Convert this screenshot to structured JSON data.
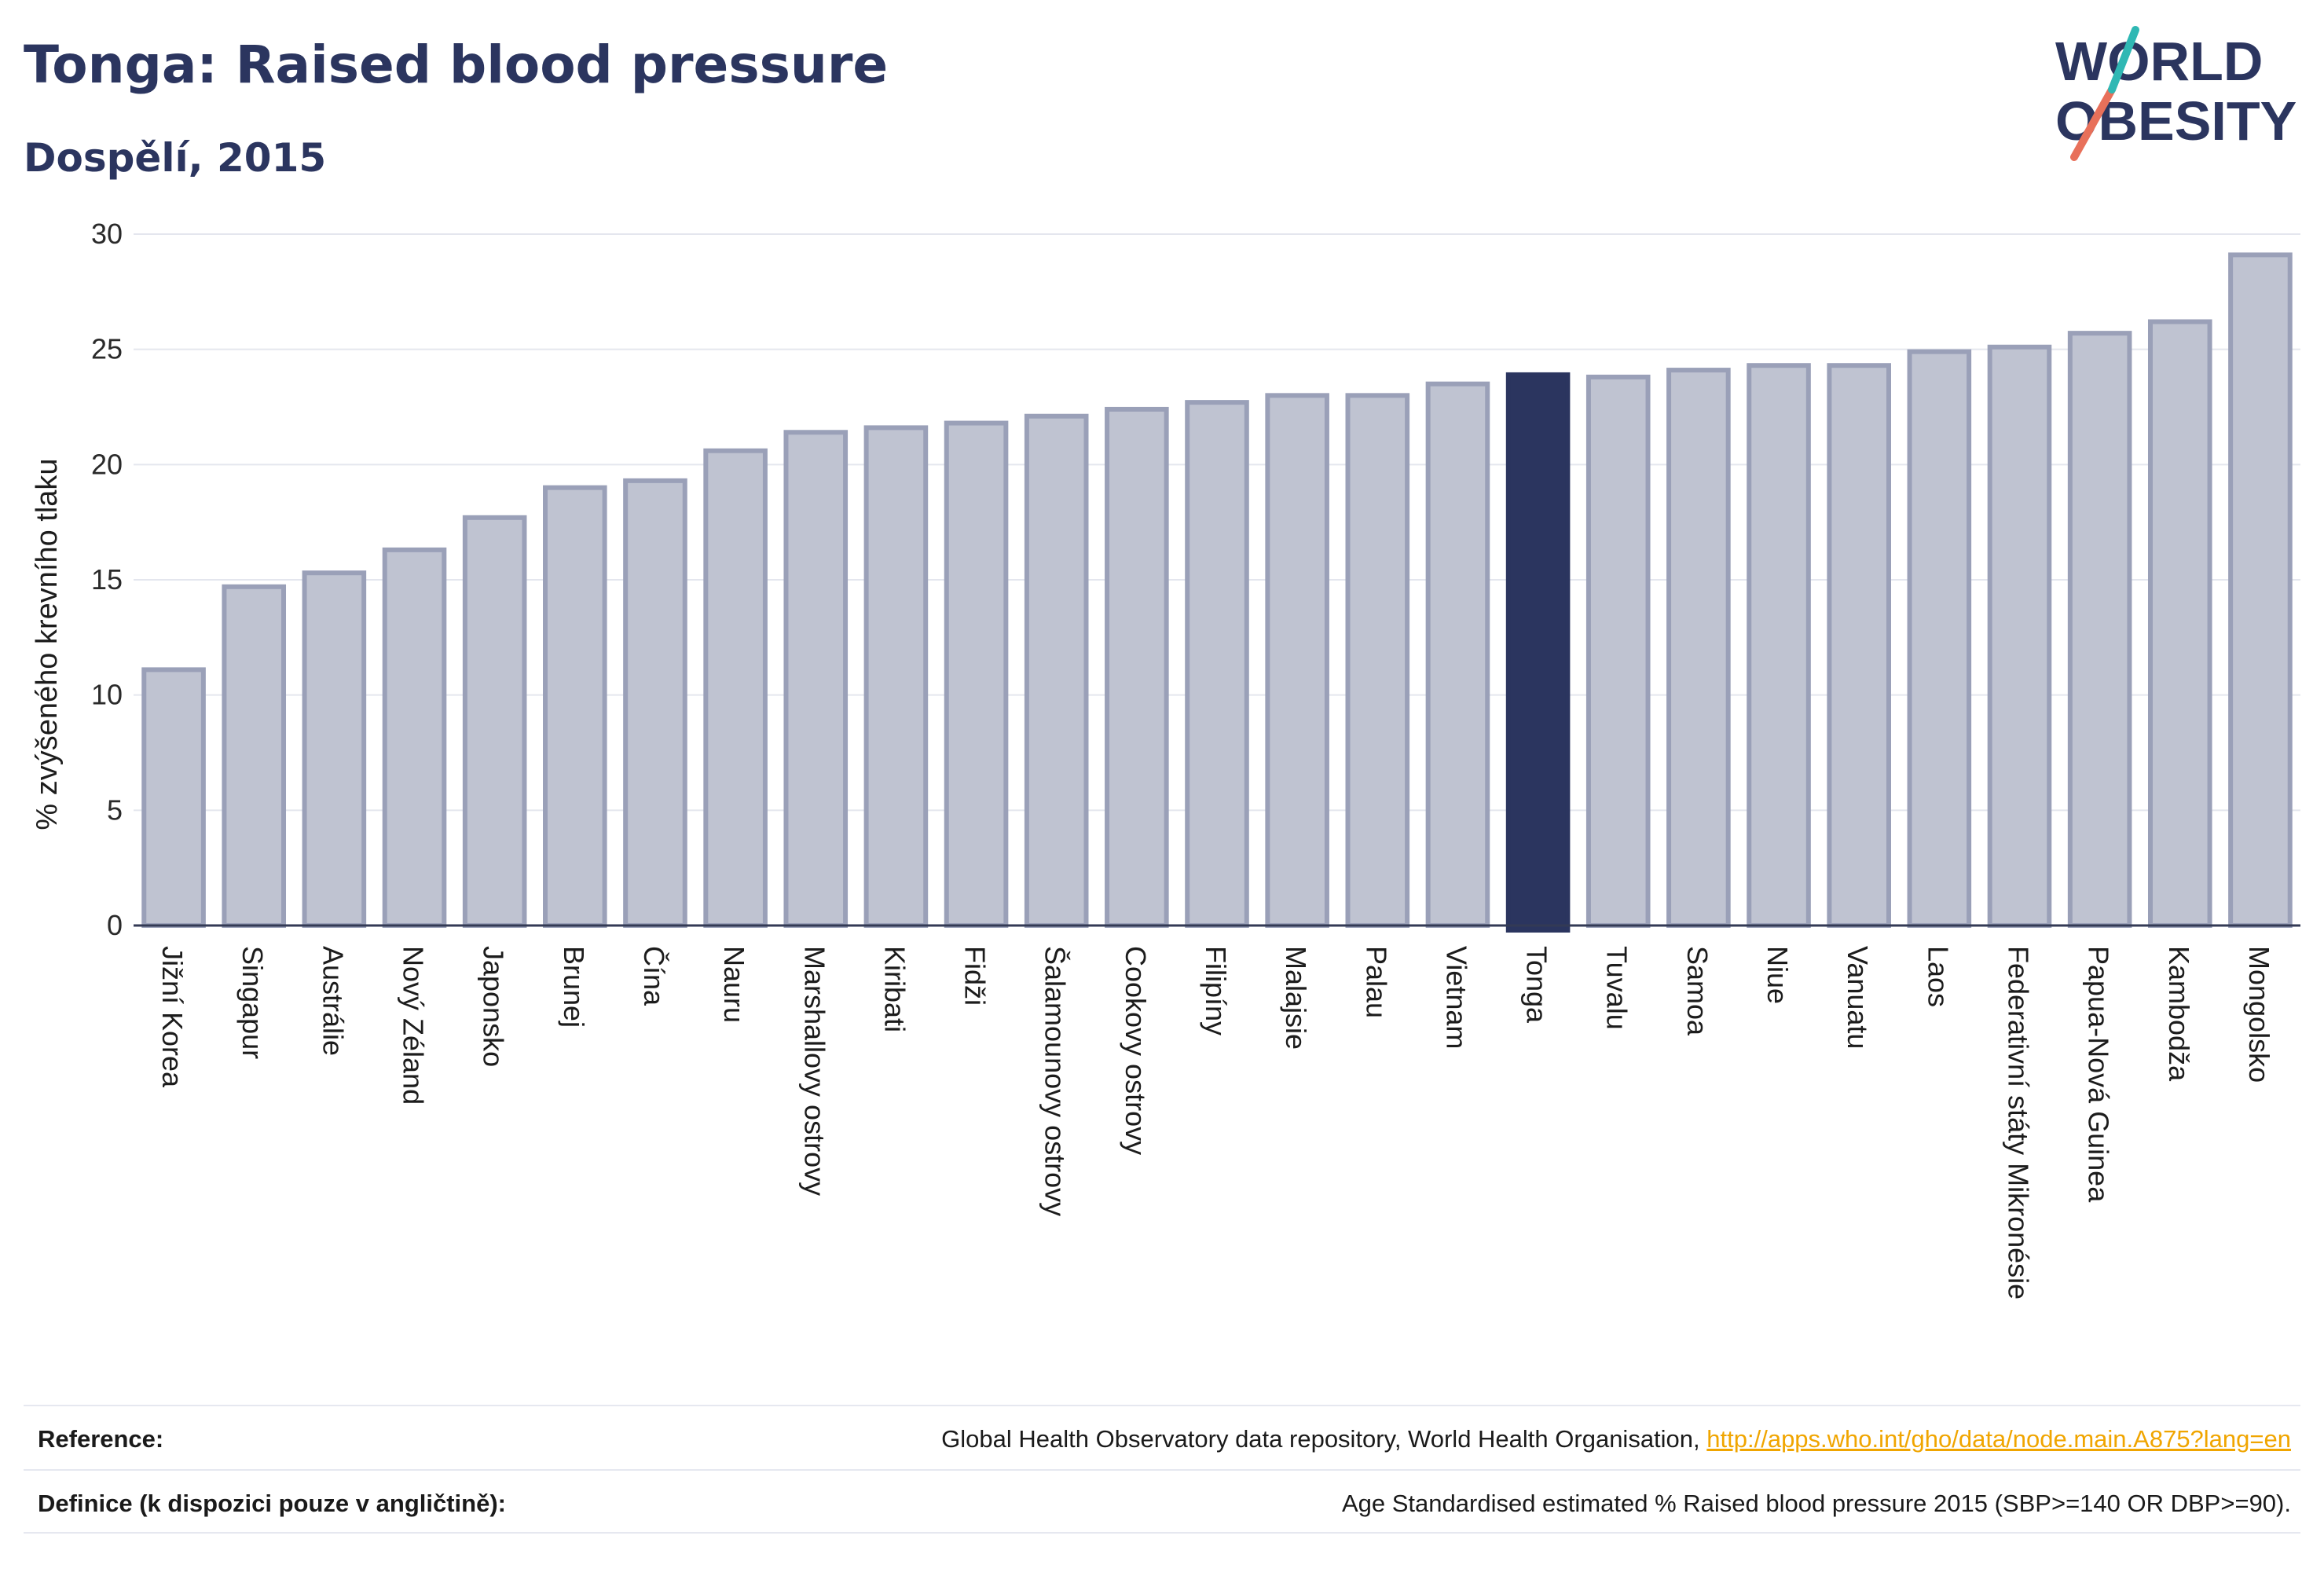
{
  "header": {
    "title": "Tonga: Raised blood pressure",
    "subtitle": "Dospělí, 2015",
    "logo_text": "WORLD OBESITY"
  },
  "colors": {
    "bar": "#bfc3d1",
    "bar_stroke": "#9aa0b8",
    "highlight": "#2b355f",
    "grid": "#e4e6ee",
    "link": "#f0a500"
  },
  "chart_data": {
    "type": "bar",
    "ylabel": "% zvýšeného krevního tlaku",
    "xlabel": "",
    "ylim": [
      0,
      30
    ],
    "yticks": [
      0,
      5,
      10,
      15,
      20,
      25,
      30
    ],
    "highlight": "Tonga",
    "categories": [
      "Jižní Korea",
      "Singapur",
      "Austrálie",
      "Nový Zéland",
      "Japonsko",
      "Brunej",
      "Čína",
      "Nauru",
      "Marshallovy ostrovy",
      "Kiribati",
      "Fidži",
      "Šalamounovy ostrovy",
      "Cookovy ostrovy",
      "Filipíny",
      "Malajsie",
      "Palau",
      "Vietnam",
      "Tonga",
      "Tuvalu",
      "Samoa",
      "Niue",
      "Vanuatu",
      "Laos",
      "Federativní státy Mikronésie",
      "Papua-Nová Guinea",
      "Kambodža",
      "Mongolsko"
    ],
    "values": [
      11.1,
      14.7,
      15.3,
      16.3,
      17.7,
      19.0,
      19.3,
      20.6,
      21.4,
      21.6,
      21.8,
      22.1,
      22.4,
      22.7,
      23.0,
      23.0,
      23.5,
      23.9,
      23.8,
      24.1,
      24.3,
      24.3,
      24.9,
      25.1,
      25.7,
      26.2,
      29.1
    ],
    "grid": true,
    "legend": "none"
  },
  "footer": {
    "reference_label": "Reference:",
    "reference_text": "Global Health Observatory data repository, World Health Organisation,",
    "reference_link": "http://apps.who.int/gho/data/node.main.A875?lang=en",
    "definition_label": "Definice (k dispozici pouze v angličtině):",
    "definition_text": "Age Standardised estimated % Raised blood pressure 2015 (SBP>=140 OR DBP>=90)."
  }
}
